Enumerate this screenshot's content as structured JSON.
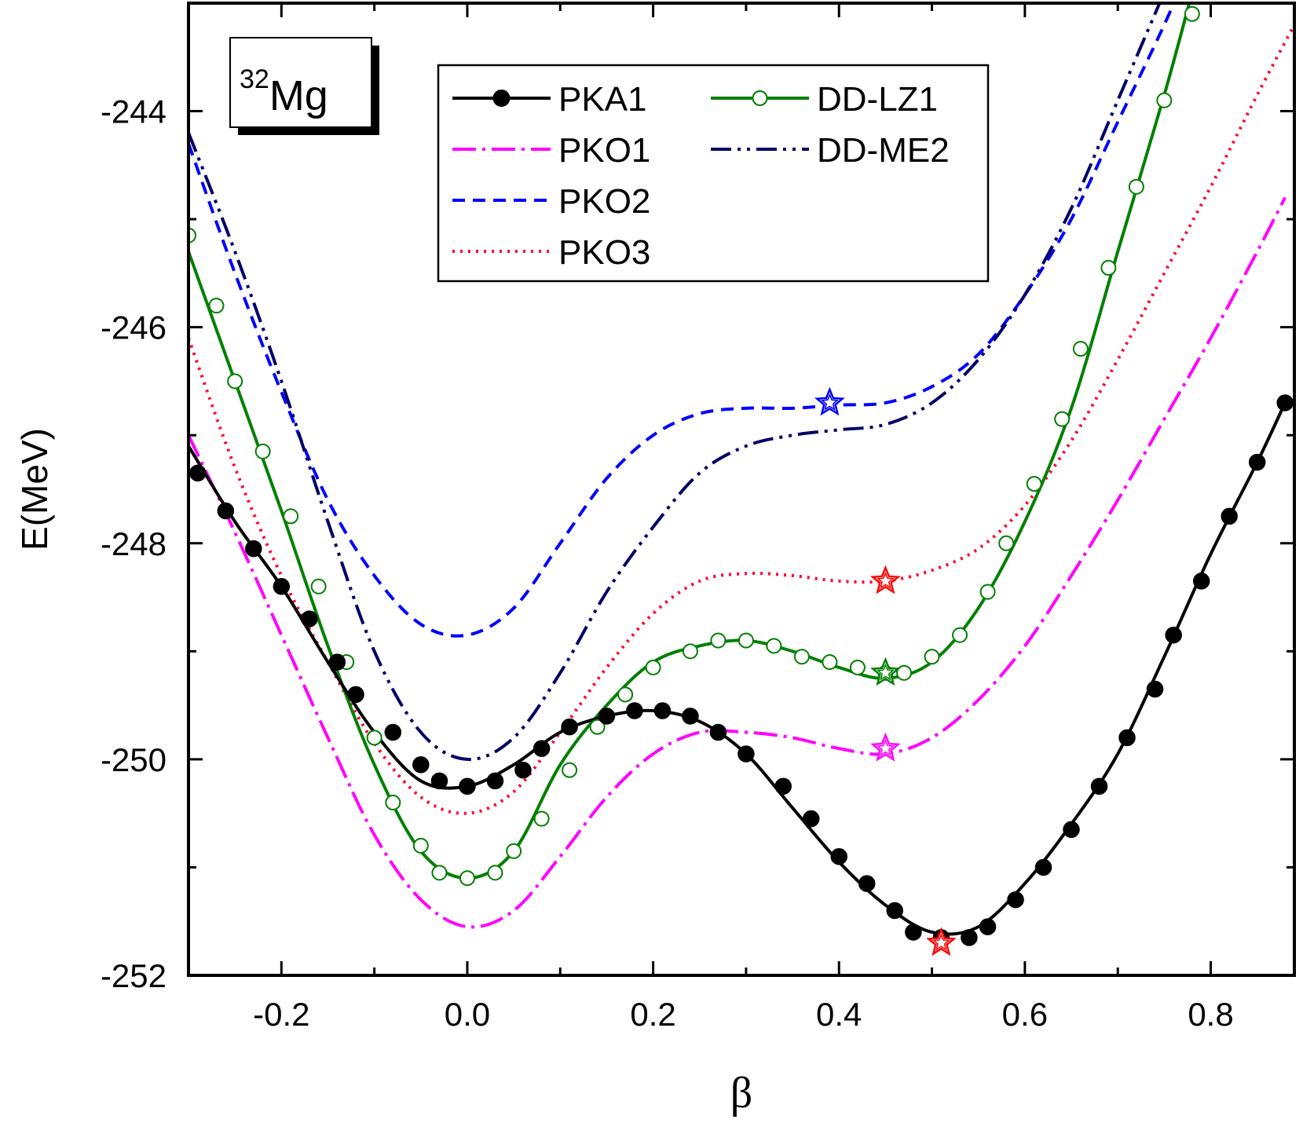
{
  "chart_data": {
    "type": "line",
    "title": "",
    "xlabel": "β",
    "ylabel": "E(MeV)",
    "xlim": [
      -0.3,
      0.89
    ],
    "ylim": [
      -252,
      -243
    ],
    "x_ticks": [
      -0.2,
      0.0,
      0.2,
      0.4,
      0.6,
      0.8
    ],
    "x_tick_labels": [
      "-0.2",
      "0.0",
      "0.2",
      "0.4",
      "0.6",
      "0.8"
    ],
    "y_ticks": [
      -252,
      -250,
      -248,
      -246,
      -244
    ],
    "y_tick_labels": [
      "-252",
      "-250",
      "-248",
      "-246",
      "-244"
    ],
    "grid": false,
    "legend_position": "top-center",
    "annotation": {
      "superscript": "32",
      "text": "Mg"
    },
    "series": [
      {
        "name": "PKA1",
        "color": "#000000",
        "dash": "solid",
        "marker": "filled-circle",
        "x": [
          -0.3,
          -0.25,
          -0.2,
          -0.15,
          -0.1,
          -0.05,
          0.0,
          0.05,
          0.1,
          0.15,
          0.2,
          0.25,
          0.3,
          0.35,
          0.4,
          0.45,
          0.5,
          0.55,
          0.6,
          0.65,
          0.7,
          0.75,
          0.8,
          0.85,
          0.88
        ],
        "y": [
          -247.1,
          -247.8,
          -248.4,
          -249.1,
          -249.75,
          -250.2,
          -250.25,
          -250.05,
          -249.75,
          -249.6,
          -249.55,
          -249.65,
          -249.95,
          -250.45,
          -250.95,
          -251.35,
          -251.6,
          -251.55,
          -251.15,
          -250.6,
          -249.95,
          -249.05,
          -248.1,
          -247.25,
          -246.7
        ],
        "markers_x": [
          -0.29,
          -0.26,
          -0.23,
          -0.2,
          -0.17,
          -0.14,
          -0.12,
          -0.08,
          -0.05,
          -0.03,
          0.0,
          0.03,
          0.06,
          0.08,
          0.11,
          0.15,
          0.18,
          0.21,
          0.24,
          0.27,
          0.3,
          0.34,
          0.37,
          0.4,
          0.43,
          0.46,
          0.48,
          0.51,
          0.54,
          0.56,
          0.59,
          0.62,
          0.65,
          0.68,
          0.71,
          0.74,
          0.76,
          0.79,
          0.82,
          0.85,
          0.88
        ],
        "markers_y": [
          -247.35,
          -247.7,
          -248.05,
          -248.4,
          -248.7,
          -249.1,
          -249.4,
          -249.75,
          -250.05,
          -250.2,
          -250.25,
          -250.2,
          -250.1,
          -249.9,
          -249.7,
          -249.6,
          -249.55,
          -249.55,
          -249.6,
          -249.75,
          -249.95,
          -250.25,
          -250.55,
          -250.9,
          -251.15,
          -251.4,
          -251.6,
          -251.65,
          -251.65,
          -251.55,
          -251.3,
          -251.0,
          -250.65,
          -250.25,
          -249.8,
          -249.35,
          -248.85,
          -248.35,
          -247.75,
          -247.25,
          -246.7
        ]
      },
      {
        "name": "PKO1",
        "color": "#ff00ff",
        "dash": "dash-dot",
        "marker": "none",
        "x": [
          -0.3,
          -0.25,
          -0.2,
          -0.15,
          -0.1,
          -0.05,
          0.0,
          0.05,
          0.1,
          0.15,
          0.2,
          0.25,
          0.3,
          0.35,
          0.4,
          0.45,
          0.5,
          0.55,
          0.6,
          0.65,
          0.7,
          0.75,
          0.8,
          0.85,
          0.88
        ],
        "y": [
          -247.0,
          -247.9,
          -248.85,
          -249.8,
          -250.7,
          -251.3,
          -251.55,
          -251.4,
          -250.9,
          -250.35,
          -249.95,
          -249.75,
          -249.75,
          -249.8,
          -249.9,
          -249.95,
          -249.8,
          -249.45,
          -248.95,
          -248.3,
          -247.6,
          -246.85,
          -246.1,
          -245.3,
          -244.8
        ],
        "markers_x": [],
        "markers_y": []
      },
      {
        "name": "PKO2",
        "color": "#0000ff",
        "dash": "dash",
        "marker": "none",
        "x": [
          -0.3,
          -0.25,
          -0.2,
          -0.15,
          -0.1,
          -0.05,
          0.0,
          0.05,
          0.1,
          0.15,
          0.2,
          0.25,
          0.3,
          0.35,
          0.4,
          0.45,
          0.5,
          0.55,
          0.6,
          0.65,
          0.7,
          0.75,
          0.78
        ],
        "y": [
          -244.3,
          -245.5,
          -246.6,
          -247.6,
          -248.3,
          -248.75,
          -248.85,
          -248.6,
          -248.0,
          -247.4,
          -247.0,
          -246.8,
          -246.75,
          -246.75,
          -246.72,
          -246.7,
          -246.55,
          -246.25,
          -245.7,
          -245.0,
          -244.1,
          -243.2,
          -242.6
        ],
        "markers_x": [],
        "markers_y": []
      },
      {
        "name": "PKO3",
        "color": "#ff0033",
        "dash": "dot",
        "marker": "none",
        "x": [
          -0.3,
          -0.25,
          -0.2,
          -0.15,
          -0.1,
          -0.05,
          0.0,
          0.05,
          0.1,
          0.15,
          0.2,
          0.25,
          0.3,
          0.35,
          0.4,
          0.45,
          0.5,
          0.55,
          0.6,
          0.65,
          0.7,
          0.75,
          0.8,
          0.85,
          0.89
        ],
        "y": [
          -246.1,
          -247.3,
          -248.3,
          -249.1,
          -249.85,
          -250.35,
          -250.5,
          -250.3,
          -249.75,
          -249.15,
          -248.65,
          -248.35,
          -248.28,
          -248.3,
          -248.35,
          -248.35,
          -248.25,
          -248.05,
          -247.65,
          -247.05,
          -246.3,
          -245.5,
          -244.7,
          -243.85,
          -243.2
        ],
        "markers_x": [],
        "markers_y": []
      },
      {
        "name": "DD-LZ1",
        "color": "#008000",
        "dash": "solid",
        "marker": "open-circle",
        "x": [
          -0.3,
          -0.25,
          -0.2,
          -0.15,
          -0.1,
          -0.05,
          0.0,
          0.05,
          0.1,
          0.15,
          0.2,
          0.25,
          0.3,
          0.35,
          0.4,
          0.45,
          0.5,
          0.55,
          0.6,
          0.65,
          0.7,
          0.75,
          0.78
        ],
        "y": [
          -245.3,
          -246.5,
          -247.7,
          -248.95,
          -250.05,
          -250.85,
          -251.1,
          -250.85,
          -250.05,
          -249.5,
          -249.1,
          -248.95,
          -248.9,
          -249.0,
          -249.15,
          -249.25,
          -249.1,
          -248.6,
          -247.8,
          -246.75,
          -245.3,
          -243.85,
          -242.9
        ],
        "markers_x": [
          -0.3,
          -0.27,
          -0.25,
          -0.22,
          -0.19,
          -0.16,
          -0.13,
          -0.1,
          -0.08,
          -0.05,
          -0.03,
          0.0,
          0.03,
          0.05,
          0.08,
          0.11,
          0.14,
          0.17,
          0.2,
          0.24,
          0.27,
          0.3,
          0.33,
          0.36,
          0.39,
          0.42,
          0.45,
          0.47,
          0.5,
          0.53,
          0.56,
          0.58,
          0.61,
          0.64,
          0.66,
          0.69,
          0.72,
          0.75,
          0.78
        ],
        "markers_y": [
          -245.15,
          -245.8,
          -246.5,
          -247.15,
          -247.75,
          -248.4,
          -249.1,
          -249.8,
          -250.4,
          -250.8,
          -251.05,
          -251.1,
          -251.05,
          -250.85,
          -250.55,
          -250.1,
          -249.7,
          -249.4,
          -249.15,
          -249.0,
          -248.9,
          -248.9,
          -248.95,
          -249.05,
          -249.1,
          -249.15,
          -249.2,
          -249.2,
          -249.05,
          -248.85,
          -248.45,
          -248.0,
          -247.45,
          -246.85,
          -246.2,
          -245.45,
          -244.7,
          -243.9,
          -243.1
        ]
      },
      {
        "name": "DD-ME2",
        "color": "#000066",
        "dash": "dash-dot-dot",
        "marker": "none",
        "x": [
          -0.3,
          -0.25,
          -0.2,
          -0.15,
          -0.1,
          -0.05,
          0.0,
          0.05,
          0.1,
          0.15,
          0.2,
          0.25,
          0.3,
          0.35,
          0.4,
          0.45,
          0.5,
          0.55,
          0.6,
          0.65,
          0.7,
          0.75,
          0.77
        ],
        "y": [
          -244.2,
          -245.3,
          -246.5,
          -247.8,
          -249.0,
          -249.75,
          -250.0,
          -249.8,
          -249.2,
          -248.45,
          -247.85,
          -247.35,
          -247.1,
          -247.0,
          -246.95,
          -246.9,
          -246.7,
          -246.3,
          -245.7,
          -244.9,
          -243.9,
          -242.9,
          -242.5
        ],
        "markers_x": [],
        "markers_y": []
      }
    ],
    "minima_stars": [
      {
        "series": "PKA1",
        "x": 0.51,
        "y": -251.7,
        "color": "#ff0000"
      },
      {
        "series": "PKO1",
        "x": 0.45,
        "y": -249.9,
        "color": "#ff00ff"
      },
      {
        "series": "PKO2",
        "x": 0.39,
        "y": -246.7,
        "color": "#0000ff"
      },
      {
        "series": "PKO3",
        "x": 0.45,
        "y": -248.35,
        "color": "#ff0000"
      },
      {
        "series": "DD-LZ1",
        "x": 0.45,
        "y": -249.2,
        "color": "#008000"
      }
    ]
  }
}
